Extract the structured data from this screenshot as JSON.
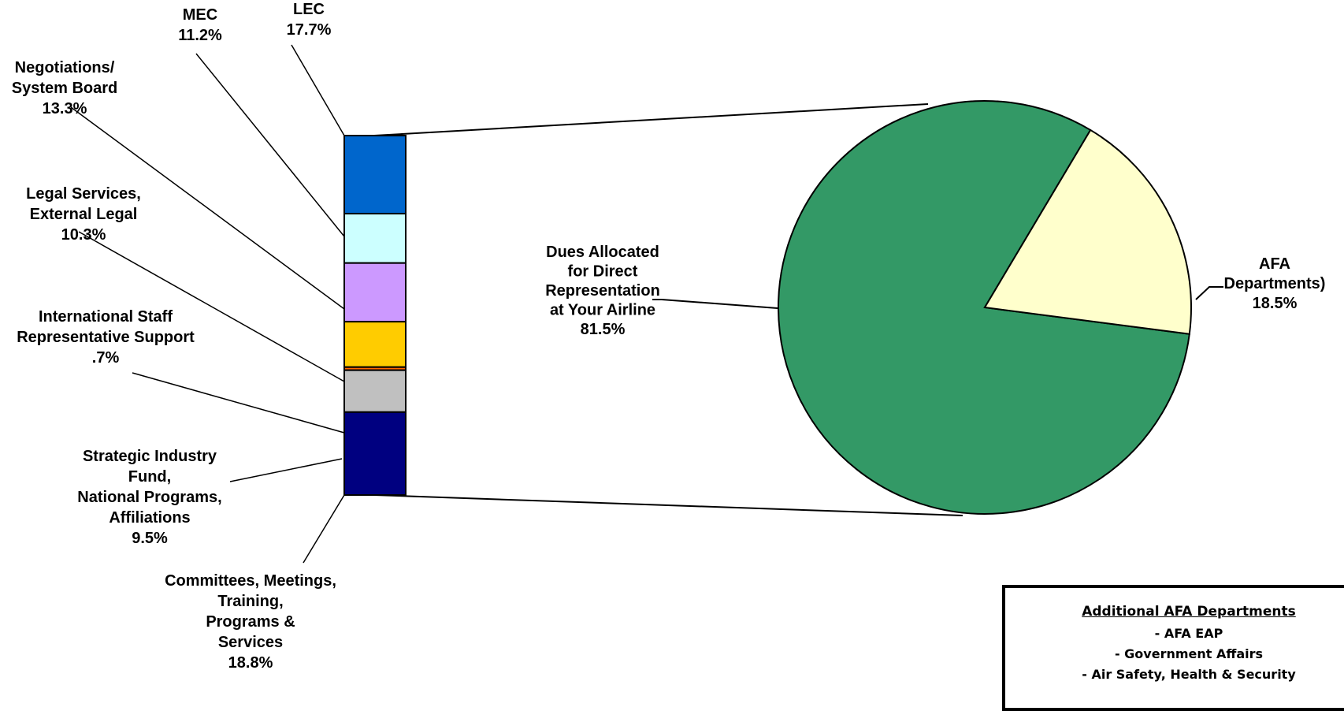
{
  "chart_data": [
    {
      "type": "pie",
      "title": "",
      "slices": [
        {
          "label": [
            "Dues Allocated",
            "for Direct",
            "Representation",
            "at Your Airline"
          ],
          "value": 81.5,
          "value_label": "81.5%",
          "color": "#339966"
        },
        {
          "label": [
            "AFA",
            "Departments)"
          ],
          "value": 18.5,
          "value_label": "18.5%",
          "color": "#ffffcc"
        }
      ]
    },
    {
      "type": "bar",
      "stacked": true,
      "title": "",
      "categories": [
        "LEC",
        "MEC",
        "Negotiations/ System Board",
        "Legal Services, External Legal",
        "International Staff Representative Support",
        "Strategic Industry Fund, National Programs, Affiliations",
        "Committees, Meetings, Training, Programs & Services"
      ],
      "segments": [
        {
          "label": [
            "LEC"
          ],
          "value": 17.7,
          "value_label": "17.7%",
          "color": "#0066cc"
        },
        {
          "label": [
            "MEC"
          ],
          "value": 11.2,
          "value_label": "11.2%",
          "color": "#ccffff"
        },
        {
          "label": [
            "Negotiations/",
            "System Board"
          ],
          "value": 13.3,
          "value_label": "13.3%",
          "color": "#cc99ff"
        },
        {
          "label": [
            "Legal Services,",
            "External Legal"
          ],
          "value": 10.3,
          "value_label": "10.3%",
          "color": "#ffcc00"
        },
        {
          "label": [
            "International Staff",
            "Representative Support"
          ],
          "value": 0.7,
          "value_label": ".7%",
          "color": "#ff6600"
        },
        {
          "label": [
            "Strategic Industry",
            "Fund,",
            "National Programs,",
            "Affiliations"
          ],
          "value": 9.5,
          "value_label": "9.5%",
          "color": "#c0c0c0"
        },
        {
          "label": [
            "Committees, Meetings,",
            "Training,",
            "Programs &",
            "Services"
          ],
          "value": 18.8,
          "value_label": "18.8%",
          "color": "#000080"
        }
      ]
    }
  ],
  "info_box": {
    "title": "Additional AFA Departments",
    "items": [
      "- AFA EAP",
      "- Government Affairs",
      "- Air Safety, Health & Security"
    ]
  }
}
